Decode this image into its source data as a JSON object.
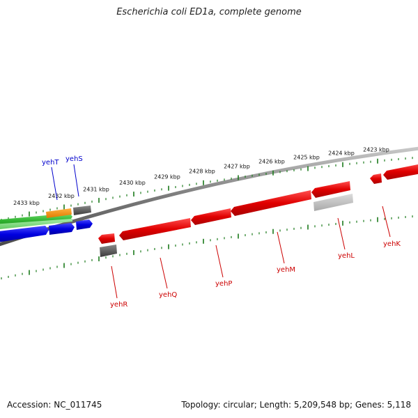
{
  "title": "Escherichia coli ED1a, complete genome",
  "footer": {
    "accession": "Accession: NC_011745",
    "stats": "Topology: circular; Length: 5,209,548 bp; Genes: 5,118"
  },
  "colors": {
    "forward_gene": "#0000dd",
    "reverse_gene": "#dd0000",
    "backbone": "#808080",
    "ticks": "#1a7a1a"
  },
  "ticks": [
    {
      "label": "2433 kbp"
    },
    {
      "label": "2432 kbp"
    },
    {
      "label": "2431 kbp"
    },
    {
      "label": "2430 kbp"
    },
    {
      "label": "2429 kbp"
    },
    {
      "label": "2428 kbp"
    },
    {
      "label": "2427 kbp"
    },
    {
      "label": "2426 kbp"
    },
    {
      "label": "2425 kbp"
    },
    {
      "label": "2424 kbp"
    },
    {
      "label": "2423 kbp"
    }
  ],
  "genes": [
    {
      "name": "yehT",
      "strand": "forward"
    },
    {
      "name": "yehS",
      "strand": "forward"
    },
    {
      "name": "yehR",
      "strand": "reverse"
    },
    {
      "name": "yehQ",
      "strand": "reverse"
    },
    {
      "name": "yehP",
      "strand": "reverse"
    },
    {
      "name": "yehM",
      "strand": "reverse"
    },
    {
      "name": "yehL",
      "strand": "reverse"
    },
    {
      "name": "yehK",
      "strand": "reverse"
    }
  ]
}
